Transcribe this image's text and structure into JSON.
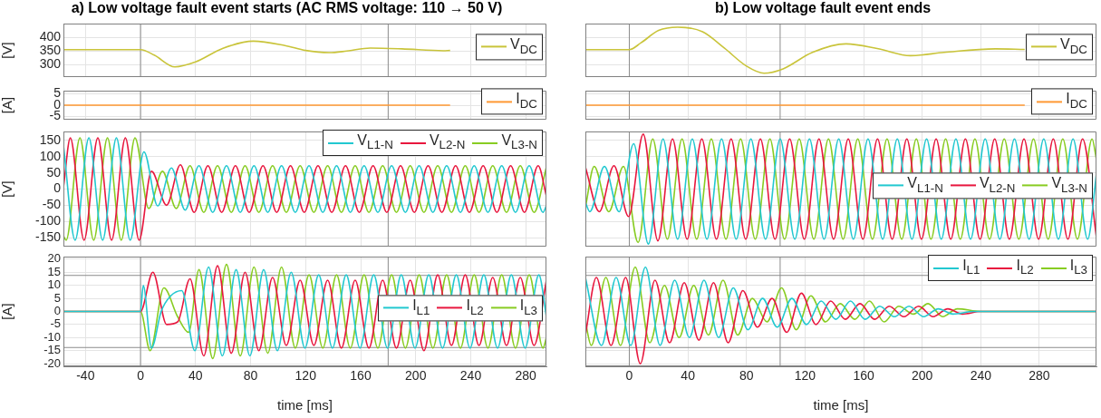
{
  "chart_data": [
    {
      "type": "line",
      "title": "a) Low voltage fault event starts (AC RMS voltage: 110 → 50 V)",
      "ylabel": "[V]",
      "xlim": [
        -56,
        295
      ],
      "xticks": [
        -40,
        0,
        40,
        80,
        120,
        160,
        200,
        240,
        280
      ],
      "ylim": [
        255,
        450
      ],
      "yticks": [
        300,
        350,
        400
      ],
      "grid": true,
      "legend": "right",
      "tick_labels": "y",
      "ref_lines": [
        {
          "axis": "x",
          "value": 0,
          "color": "#8c8c8c"
        },
        {
          "axis": "x",
          "value": 180,
          "color": "#8c8c8c"
        }
      ],
      "series": [
        {
          "name": "V$_{DC}$",
          "color": "#c9c43a",
          "x": [
            -56,
            0,
            10,
            25,
            40,
            60,
            82,
            105,
            120,
            137,
            150,
            167,
            190,
            220,
            225
          ],
          "values": [
            355,
            355,
            335,
            292,
            310,
            360,
            386,
            370,
            352,
            344,
            350,
            361,
            358,
            351,
            352
          ]
        }
      ]
    },
    {
      "type": "line",
      "title": "b) Low voltage fault event ends",
      "xlim": [
        -30,
        319
      ],
      "xticks": [
        0,
        40,
        80,
        120,
        160,
        200,
        240,
        280
      ],
      "ylim": [
        255,
        450
      ],
      "yticks": [
        300,
        350,
        400
      ],
      "grid": true,
      "legend": "right",
      "tick_labels": false,
      "ref_lines": [
        {
          "axis": "x",
          "value": 0,
          "color": "#8c8c8c"
        },
        {
          "axis": "x",
          "value": 103,
          "color": "#8c8c8c"
        }
      ],
      "series": [
        {
          "name": "V$_{DC}$",
          "color": "#c9c43a",
          "x": [
            -30,
            0,
            8,
            20,
            33,
            50,
            65,
            80,
            92,
            105,
            125,
            148,
            170,
            192,
            215,
            250,
            270
          ],
          "values": [
            355,
            355,
            380,
            425,
            437,
            420,
            360,
            295,
            269,
            285,
            345,
            376,
            358,
            333,
            345,
            358,
            356
          ]
        }
      ]
    },
    {
      "type": "line",
      "ylabel": "[A]",
      "xlim": [
        -56,
        295
      ],
      "xticks": [
        -40,
        0,
        40,
        80,
        120,
        160,
        200,
        240,
        280
      ],
      "ylim": [
        -6.4,
        6.4
      ],
      "yticks": [
        -5,
        0,
        5
      ],
      "grid": true,
      "legend": "right",
      "tick_labels": "y",
      "ref_lines": [
        {
          "axis": "x",
          "value": 0,
          "color": "#8c8c8c"
        },
        {
          "axis": "x",
          "value": 180,
          "color": "#8c8c8c"
        }
      ],
      "series": [
        {
          "name": "I$_{DC}$",
          "color": "#ff9933",
          "x": [
            -56,
            225
          ],
          "values": [
            0,
            0
          ]
        }
      ]
    },
    {
      "type": "line",
      "xlim": [
        -30,
        319
      ],
      "xticks": [
        0,
        40,
        80,
        120,
        160,
        200,
        240,
        280
      ],
      "ylim": [
        -6.4,
        6.4
      ],
      "yticks": [
        -5,
        0,
        5
      ],
      "grid": true,
      "legend": "right",
      "tick_labels": false,
      "ref_lines": [
        {
          "axis": "x",
          "value": 0,
          "color": "#8c8c8c"
        },
        {
          "axis": "x",
          "value": 103,
          "color": "#8c8c8c"
        }
      ],
      "series": [
        {
          "name": "I$_{DC}$",
          "color": "#ff9933",
          "x": [
            -30,
            270
          ],
          "values": [
            0,
            0
          ]
        }
      ]
    },
    {
      "type": "line",
      "ylabel": "[V]",
      "xlim": [
        -56,
        295
      ],
      "xticks": [
        -40,
        0,
        40,
        80,
        120,
        160,
        200,
        240,
        280
      ],
      "ylim": [
        -178,
        178
      ],
      "yticks": [
        -150,
        -100,
        -50,
        0,
        50,
        100,
        150
      ],
      "grid": true,
      "legend": "top right",
      "tick_labels": "y",
      "ref_lines": [
        {
          "axis": "x",
          "value": 0,
          "color": "#8c8c8c"
        },
        {
          "axis": "x",
          "value": 180,
          "color": "#8c8c8c"
        }
      ],
      "series": [
        {
          "name": "V$_{L1-N}$",
          "color": "#22c8d0",
          "x": [
            -56,
            -47.5,
            -37.5,
            -27.5,
            -17.5,
            -7.5,
            2.5,
            12.5,
            22.5,
            32.5,
            42.5,
            52.5,
            62.5,
            72.5,
            82.5,
            92.5,
            102.5,
            112.5,
            122.5,
            132.5,
            142.5,
            152.5,
            162.5,
            172.5,
            182.5,
            192.5,
            202.5,
            212.5,
            222.5,
            232.5,
            242.5,
            252.5,
            262.5,
            272.5,
            282.5,
            292.5,
            295
          ],
          "values": [
            135,
            -158,
            158,
            -158,
            158,
            -158,
            115,
            -52,
            65,
            -65,
            72,
            -72,
            72,
            -72,
            72,
            -72,
            72,
            -72,
            72,
            -72,
            72,
            -72,
            72,
            -72,
            72,
            -72,
            72,
            -72,
            72,
            -72,
            72,
            -72,
            72,
            -72,
            72,
            -72,
            -51
          ]
        },
        {
          "name": "V$_{L2-N}$",
          "color": "#e8173e",
          "x": [
            -56,
            -51,
            -41,
            -31,
            -21,
            -11,
            -1,
            8,
            19,
            29,
            39,
            49,
            59,
            69,
            79,
            89,
            99,
            109,
            119,
            129,
            139,
            149,
            159,
            169,
            179,
            189,
            199,
            209,
            219,
            229,
            239,
            249,
            259,
            269,
            279,
            289,
            295
          ],
          "values": [
            5,
            158,
            -158,
            158,
            -158,
            158,
            -158,
            55,
            -50,
            75,
            -72,
            72,
            -72,
            72,
            -72,
            72,
            -72,
            72,
            -72,
            72,
            -72,
            72,
            -72,
            72,
            -72,
            72,
            -72,
            72,
            -72,
            72,
            -72,
            72,
            -72,
            72,
            -72,
            72,
            -22
          ]
        },
        {
          "name": "V$_{L3-N}$",
          "color": "#88cc22",
          "x": [
            -56,
            -54,
            -44,
            -34,
            -24,
            -14,
            -4,
            6,
            16,
            26,
            36,
            46,
            56,
            66,
            76,
            86,
            96,
            106,
            116,
            126,
            136,
            146,
            156,
            166,
            176,
            186,
            196,
            206,
            216,
            226,
            236,
            246,
            256,
            266,
            276,
            286,
            295
          ],
          "values": [
            -145,
            -158,
            158,
            -158,
            158,
            -158,
            158,
            -60,
            55,
            -60,
            72,
            -72,
            72,
            -72,
            72,
            -72,
            72,
            -72,
            72,
            -72,
            72,
            -72,
            72,
            -72,
            72,
            -72,
            72,
            -72,
            72,
            -72,
            72,
            -72,
            72,
            -72,
            72,
            -72,
            68
          ]
        }
      ]
    },
    {
      "type": "line",
      "xlim": [
        -30,
        319
      ],
      "xticks": [
        0,
        40,
        80,
        120,
        160,
        200,
        240,
        280
      ],
      "ylim": [
        -178,
        178
      ],
      "yticks": [
        -150,
        -100,
        -50,
        0,
        50,
        100,
        150
      ],
      "grid": true,
      "legend": "right",
      "tick_labels": false,
      "ref_lines": [
        {
          "axis": "x",
          "value": 0,
          "color": "#8c8c8c"
        },
        {
          "axis": "x",
          "value": 103,
          "color": "#8c8c8c"
        }
      ],
      "series": [
        {
          "name": "V$_{L1-N}$",
          "color": "#22c8d0",
          "x": [
            -30,
            -27,
            -17,
            -7,
            3,
            13,
            23,
            33,
            43,
            53,
            63,
            73,
            83,
            93,
            103,
            113,
            123,
            133,
            143,
            153,
            163,
            173,
            183,
            193,
            203,
            213,
            223,
            233,
            243,
            253,
            263,
            273,
            283,
            293,
            303,
            313,
            319
          ],
          "values": [
            -41,
            -70,
            70,
            -70,
            140,
            -170,
            155,
            -155,
            155,
            -155,
            155,
            -155,
            155,
            -155,
            155,
            -155,
            155,
            -155,
            155,
            -155,
            155,
            -155,
            155,
            -155,
            155,
            -155,
            155,
            -155,
            155,
            -155,
            155,
            -155,
            155,
            -155,
            155,
            -155,
            48
          ]
        },
        {
          "name": "V$_{L2-N}$",
          "color": "#e8173e",
          "x": [
            -30,
            -20.5,
            -10.5,
            -0.5,
            9.5,
            19.5,
            29.5,
            39.5,
            49.5,
            59.5,
            69.5,
            79.5,
            89.5,
            99.5,
            109.5,
            119.5,
            129.5,
            139.5,
            149.5,
            159.5,
            169.5,
            179.5,
            189.5,
            199.5,
            209.5,
            219.5,
            229.5,
            239.5,
            249.5,
            259.5,
            269.5,
            279.5,
            289.5,
            299.5,
            309.5,
            319
          ],
          "values": [
            68,
            -70,
            72,
            -85,
            170,
            -160,
            155,
            -155,
            155,
            -155,
            155,
            -155,
            155,
            -155,
            155,
            -155,
            155,
            -155,
            155,
            -155,
            155,
            -155,
            155,
            -155,
            155,
            -155,
            155,
            -155,
            155,
            -155,
            155,
            -155,
            155,
            -155,
            155,
            -150
          ]
        },
        {
          "name": "V$_{L3-N}$",
          "color": "#88cc22",
          "x": [
            -30,
            -24,
            -14,
            -4,
            6,
            16,
            26,
            36,
            46,
            56,
            66,
            76,
            86,
            96,
            106,
            116,
            126,
            136,
            146,
            156,
            166,
            176,
            186,
            196,
            206,
            216,
            226,
            236,
            246,
            256,
            266,
            276,
            286,
            296,
            306,
            316,
            319
          ],
          "values": [
            -57,
            70,
            -70,
            70,
            -165,
            155,
            -155,
            155,
            -155,
            155,
            -155,
            155,
            -155,
            155,
            -155,
            155,
            -155,
            155,
            -155,
            155,
            -155,
            155,
            -155,
            155,
            -155,
            155,
            -155,
            155,
            -155,
            155,
            -155,
            155,
            -155,
            155,
            -155,
            155,
            91
          ]
        }
      ]
    },
    {
      "type": "line",
      "xlabel": "time [ms]",
      "ylabel": "[A]",
      "xlim": [
        -56,
        295
      ],
      "xticks": [
        -40,
        0,
        40,
        80,
        120,
        160,
        200,
        240,
        280
      ],
      "ylim": [
        -21,
        21
      ],
      "yticks": [
        -20,
        -15,
        -10,
        -5,
        0,
        5,
        10,
        15,
        20
      ],
      "grid": true,
      "legend": "right",
      "ref_lines": [
        {
          "axis": "x",
          "value": 0,
          "color": "#8c8c8c"
        },
        {
          "axis": "x",
          "value": 180,
          "color": "#8c8c8c"
        },
        {
          "axis": "y",
          "value": 13.8,
          "color": "#8c8c8c"
        },
        {
          "axis": "y",
          "value": -13.8,
          "color": "#8c8c8c"
        }
      ],
      "series": [
        {
          "name": "I$_{L1}$",
          "color": "#22c8d0",
          "x": [
            -56,
            0,
            2,
            8,
            15,
            22,
            30,
            39.5,
            49.5,
            59.5,
            69.5,
            79.5,
            89.5,
            99.5,
            109.5,
            119.5,
            129.5,
            139.5,
            149.5,
            159.5,
            169.5,
            179.5,
            189.5,
            199.5,
            209.5,
            219.5,
            229.5,
            239.5,
            249.5,
            259.5,
            269.5,
            279.5,
            289.5,
            295
          ],
          "values": [
            0,
            0,
            10,
            -14,
            0,
            6,
            8,
            -15,
            17,
            -17,
            16,
            -17,
            16,
            -15,
            15,
            -14,
            14,
            -14,
            14,
            -14,
            14,
            -14,
            14,
            -14,
            14,
            -14,
            14,
            -14,
            14,
            -14,
            14,
            -14,
            14,
            -2
          ]
        },
        {
          "name": "I$_{L2}$",
          "color": "#e8173e",
          "x": [
            -56,
            0,
            9,
            19,
            27,
            36,
            46,
            56,
            66,
            76,
            86,
            96,
            106,
            116,
            126,
            136,
            146,
            156,
            166,
            176,
            186,
            196,
            206,
            216,
            226,
            236,
            246,
            256,
            266,
            276,
            286,
            295
          ],
          "values": [
            0,
            0,
            15,
            -5,
            -4,
            12.5,
            -17,
            17.5,
            -16,
            15,
            -15,
            13,
            -13,
            12,
            -13,
            12,
            -14,
            12,
            -14,
            12,
            -14,
            12,
            -15,
            14,
            -13,
            14,
            -13,
            13,
            -13,
            13,
            -13,
            12
          ]
        },
        {
          "name": "I$_{L3}$",
          "color": "#88cc22",
          "x": [
            -56,
            0,
            7,
            17,
            27,
            35,
            42.5,
            52.5,
            62.5,
            72.5,
            82.5,
            92.5,
            102.5,
            112.5,
            122.5,
            132.5,
            142.5,
            152.5,
            162.5,
            172.5,
            182.5,
            192.5,
            202.5,
            212.5,
            222.5,
            232.5,
            242.5,
            252.5,
            262.5,
            272.5,
            282.5,
            292.5,
            295
          ],
          "values": [
            0,
            0,
            -15,
            9,
            -2,
            -8,
            16,
            -18,
            18,
            -17,
            17,
            -16,
            17,
            -14,
            14,
            -14,
            14,
            -14,
            14,
            -14,
            14,
            -14,
            14,
            -14,
            14,
            -14,
            14,
            -14,
            14,
            -14,
            14,
            -14,
            -10
          ]
        }
      ]
    },
    {
      "type": "line",
      "xlabel": "time [ms]",
      "xlim": [
        -30,
        319
      ],
      "xticks": [
        0,
        40,
        80,
        120,
        160,
        200,
        240,
        280
      ],
      "ylim": [
        -21,
        21
      ],
      "yticks": [
        -20,
        -15,
        -10,
        -5,
        0,
        5,
        10,
        15,
        20
      ],
      "grid": true,
      "legend": "top right",
      "tick_labels": "x",
      "ref_lines": [
        {
          "axis": "x",
          "value": 0,
          "color": "#8c8c8c"
        },
        {
          "axis": "x",
          "value": 103,
          "color": "#8c8c8c"
        },
        {
          "axis": "y",
          "value": 13.8,
          "color": "#8c8c8c"
        },
        {
          "axis": "y",
          "value": -13.8,
          "color": "#8c8c8c"
        }
      ],
      "series": [
        {
          "name": "I$_{L1}$",
          "color": "#22c8d0",
          "x": [
            -30,
            -19,
            -9,
            1,
            11,
            21,
            31,
            41,
            51,
            61,
            71,
            81,
            91,
            101,
            111,
            121,
            131,
            141,
            151,
            161,
            171,
            181,
            191,
            201,
            211,
            221,
            235,
            319
          ],
          "values": [
            13,
            -13,
            13,
            -13,
            17,
            -13,
            12,
            -10,
            12,
            -10,
            9,
            -7,
            5,
            -6,
            5,
            -5,
            4,
            -3,
            4,
            -3,
            2,
            -2,
            2,
            -2,
            1,
            -1,
            0,
            0
          ]
        },
        {
          "name": "I$_{L2}$",
          "color": "#e8173e",
          "x": [
            -30,
            -22.5,
            -12.5,
            -2.5,
            7.5,
            17.5,
            27.5,
            37.5,
            47.5,
            57.5,
            67.5,
            77.5,
            87.5,
            97.5,
            107.5,
            117.5,
            127.5,
            137.5,
            147.5,
            157.5,
            167.5,
            177.5,
            187.5,
            197.5,
            207.5,
            217.5,
            227.5,
            240,
            319
          ],
          "values": [
            -9,
            13,
            -13,
            13,
            -20,
            12,
            -12,
            11,
            -11,
            11,
            -12,
            8,
            -6,
            5,
            -8,
            7,
            -5,
            4,
            -3,
            3,
            -3,
            2,
            -2,
            2,
            -2,
            1,
            -1,
            0,
            0
          ]
        },
        {
          "name": "I$_{L3}$",
          "color": "#88cc22",
          "x": [
            -30,
            -26,
            -16,
            -6,
            4,
            14,
            24,
            34,
            44,
            54,
            64,
            74,
            84,
            94,
            104,
            114,
            124,
            134,
            144,
            154,
            164,
            174,
            184,
            194,
            204,
            214,
            224,
            240,
            319
          ],
          "values": [
            -4,
            -13,
            13,
            -13,
            17,
            -12,
            10,
            -10,
            10,
            -9,
            12,
            -9,
            5,
            -4,
            9,
            -7,
            6,
            -4,
            3,
            -3,
            4,
            -4,
            2,
            -1,
            3,
            -2,
            1,
            0,
            0
          ]
        }
      ]
    }
  ]
}
